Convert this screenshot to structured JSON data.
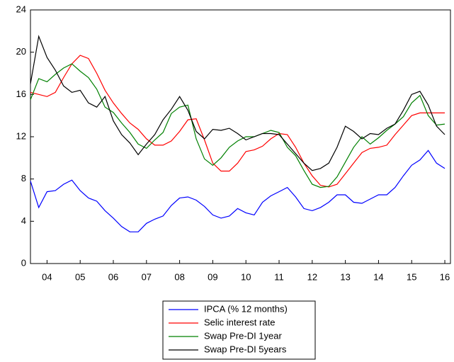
{
  "chart_data": {
    "type": "line",
    "x": [
      2004.0,
      2004.25,
      2004.5,
      2004.75,
      2005.0,
      2005.25,
      2005.5,
      2005.75,
      2006.0,
      2006.25,
      2006.5,
      2006.75,
      2007.0,
      2007.25,
      2007.5,
      2007.75,
      2008.0,
      2008.25,
      2008.5,
      2008.75,
      2009.0,
      2009.25,
      2009.5,
      2009.75,
      2010.0,
      2010.25,
      2010.5,
      2010.75,
      2011.0,
      2011.25,
      2011.5,
      2011.75,
      2012.0,
      2012.25,
      2012.5,
      2012.75,
      2013.0,
      2013.25,
      2013.5,
      2013.75,
      2014.0,
      2014.25,
      2014.5,
      2014.75,
      2015.0,
      2015.25,
      2015.5,
      2015.75,
      2016.0,
      2016.25,
      2016.5
    ],
    "xlim": [
      2004.0,
      2016.67
    ],
    "xticks": [
      {
        "value": 2004.5,
        "label": "04"
      },
      {
        "value": 2005.5,
        "label": "05"
      },
      {
        "value": 2006.5,
        "label": "06"
      },
      {
        "value": 2007.5,
        "label": "07"
      },
      {
        "value": 2008.5,
        "label": "08"
      },
      {
        "value": 2009.5,
        "label": "09"
      },
      {
        "value": 2010.5,
        "label": "10"
      },
      {
        "value": 2011.5,
        "label": "11"
      },
      {
        "value": 2012.5,
        "label": "12"
      },
      {
        "value": 2013.5,
        "label": "13"
      },
      {
        "value": 2014.5,
        "label": "14"
      },
      {
        "value": 2015.5,
        "label": "15"
      },
      {
        "value": 2016.5,
        "label": "16"
      }
    ],
    "ylim": [
      0,
      24
    ],
    "yticks": [
      0,
      4,
      8,
      12,
      16,
      20,
      24
    ],
    "series": [
      {
        "name": "IPCA (% 12 months)",
        "color": "#0000ff",
        "values": [
          7.8,
          5.3,
          6.8,
          6.9,
          7.5,
          7.9,
          6.9,
          6.2,
          5.9,
          5.0,
          4.3,
          3.5,
          3.0,
          3.0,
          3.8,
          4.2,
          4.5,
          5.5,
          6.2,
          6.3,
          6.0,
          5.4,
          4.6,
          4.3,
          4.5,
          5.2,
          4.8,
          4.6,
          5.8,
          6.4,
          6.8,
          7.2,
          6.3,
          5.2,
          5.0,
          5.3,
          5.8,
          6.5,
          6.5,
          5.8,
          5.7,
          6.1,
          6.5,
          6.5,
          7.2,
          8.3,
          9.3,
          9.8,
          10.7,
          9.5,
          9.0
        ]
      },
      {
        "name": "Selic interest rate",
        "color": "#ff0000",
        "values": [
          16.2,
          16.0,
          15.8,
          16.2,
          17.6,
          18.9,
          19.7,
          19.4,
          18.0,
          16.4,
          15.2,
          14.2,
          13.3,
          12.7,
          11.8,
          11.2,
          11.2,
          11.6,
          12.5,
          13.6,
          13.7,
          11.7,
          9.5,
          8.75,
          8.75,
          9.5,
          10.6,
          10.75,
          11.1,
          11.8,
          12.3,
          12.2,
          11.0,
          9.5,
          8.3,
          7.4,
          7.25,
          7.5,
          8.5,
          9.5,
          10.5,
          10.9,
          11.0,
          11.2,
          12.2,
          13.1,
          14.0,
          14.25,
          14.25,
          14.25,
          14.25
        ]
      },
      {
        "name": "Swap Pre-DI 1year",
        "color": "#008000",
        "values": [
          15.5,
          17.5,
          17.2,
          17.9,
          18.5,
          18.9,
          18.2,
          17.6,
          16.5,
          14.8,
          14.3,
          13.3,
          12.4,
          11.3,
          10.9,
          11.7,
          12.4,
          14.2,
          14.8,
          15.0,
          11.8,
          9.9,
          9.3,
          10.0,
          11.0,
          11.6,
          12.0,
          12.0,
          12.3,
          12.6,
          12.4,
          11.0,
          10.2,
          8.8,
          7.5,
          7.2,
          7.3,
          8.2,
          9.6,
          11.0,
          12.0,
          11.3,
          11.9,
          12.6,
          13.2,
          13.9,
          15.2,
          15.9,
          14.0,
          13.1,
          13.2
        ]
      },
      {
        "name": "Swap Pre-DI 5years",
        "color": "#000000",
        "values": [
          17.0,
          21.5,
          19.5,
          18.3,
          16.8,
          16.2,
          16.4,
          15.2,
          14.8,
          15.8,
          13.5,
          12.2,
          11.4,
          10.3,
          11.3,
          12.2,
          13.6,
          14.6,
          15.8,
          14.5,
          12.5,
          11.8,
          12.7,
          12.6,
          12.8,
          12.3,
          11.7,
          12.0,
          12.3,
          12.3,
          12.2,
          11.3,
          10.4,
          9.5,
          8.8,
          9.0,
          9.5,
          11.0,
          13.0,
          12.5,
          11.8,
          12.3,
          12.2,
          12.8,
          13.2,
          14.5,
          16.0,
          16.3,
          15.0,
          13.0,
          12.2
        ]
      }
    ]
  }
}
